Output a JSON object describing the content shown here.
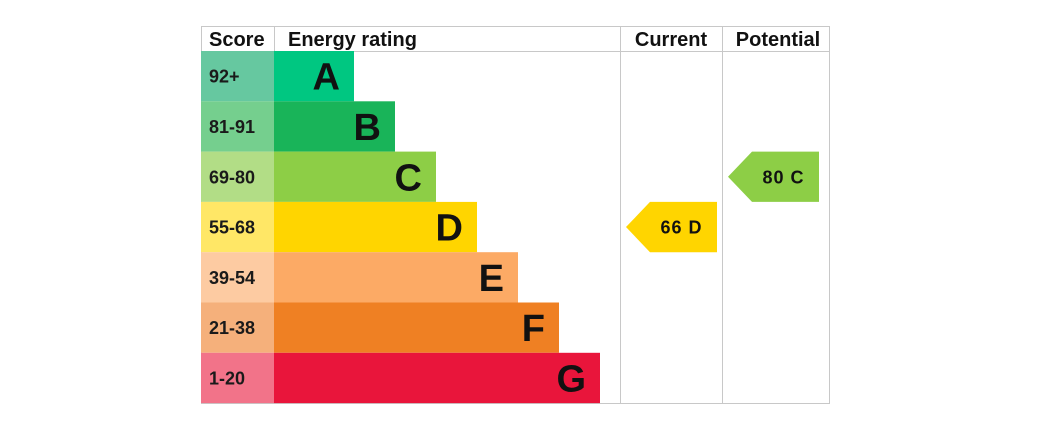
{
  "headers": {
    "score": "Score",
    "energy_rating": "Energy rating",
    "current": "Current",
    "potential": "Potential"
  },
  "chart_data": {
    "type": "bar",
    "bands": [
      {
        "score": "92+",
        "letter": "A",
        "bar_color": "#00c781",
        "score_color": "#66c8a0"
      },
      {
        "score": "81-91",
        "letter": "B",
        "bar_color": "#19b459",
        "score_color": "#75cf8e"
      },
      {
        "score": "69-80",
        "letter": "C",
        "bar_color": "#8dce46",
        "score_color": "#b2dd86"
      },
      {
        "score": "55-68",
        "letter": "D",
        "bar_color": "#ffd500",
        "score_color": "#ffe766"
      },
      {
        "score": "39-54",
        "letter": "E",
        "bar_color": "#fcaa65",
        "score_color": "#fdcba2"
      },
      {
        "score": "21-38",
        "letter": "F",
        "bar_color": "#ef8023",
        "score_color": "#f5b07b"
      },
      {
        "score": "1-20",
        "letter": "G",
        "bar_color": "#e9153b",
        "score_color": "#f27389"
      }
    ],
    "current": {
      "value": 66,
      "band": "D",
      "label": "66  D",
      "color": "#ffd500"
    },
    "potential": {
      "value": 80,
      "band": "C",
      "label": "80  C",
      "color": "#8dce46"
    }
  }
}
